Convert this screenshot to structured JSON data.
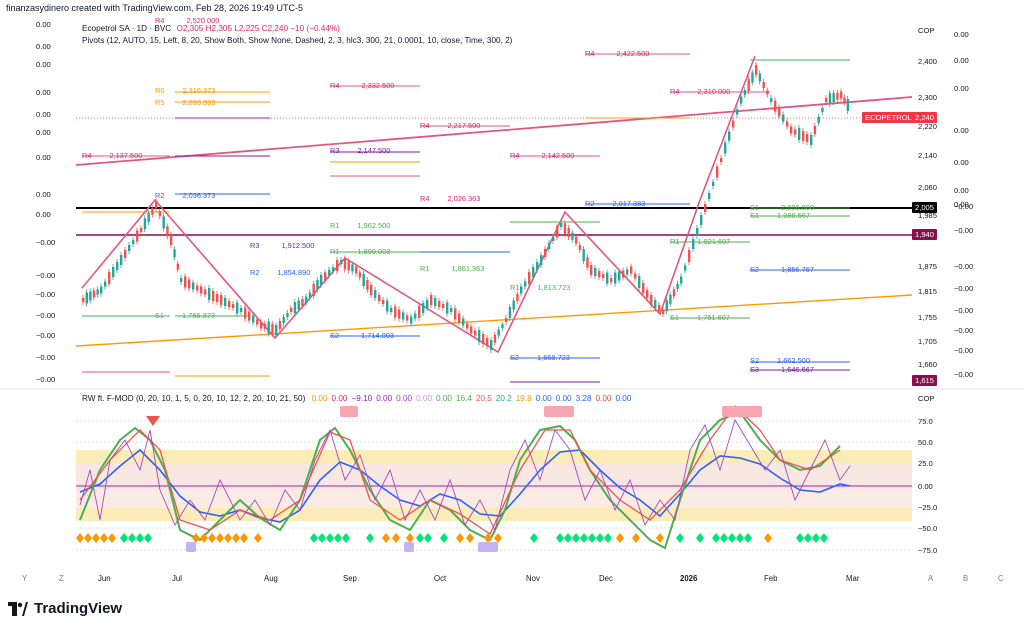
{
  "header": {
    "credit": "finanzasydinero created with TradingView.com, Feb 28, 2026 19:49 UTC-5"
  },
  "main_legend": {
    "symbol": "Ecopetrol SA · 1D · BVC",
    "ohlc": "O2,305 H2,305 L2,225 C2,240 −10 (−0.44%)",
    "pivots": "Pivots (12, AUTO, 15, Left, 8, 20, Show Both, Show None, Dashed, 2, 3, hlc3, 300, 21, 0.0001, 10, close, Time, 300, 2)"
  },
  "indicator_legend": {
    "name": "RW ft. F-MOD (0, 20, 10, 1, 5, 0, 20, 10, 12, 2, 20, 10, 21, 50)",
    "values": [
      {
        "v": "0.00",
        "c": "#ff9800"
      },
      {
        "v": "0.00",
        "c": "#e91e63"
      },
      {
        "v": "−9.10",
        "c": "#9c27b0"
      },
      {
        "v": "0.00",
        "c": "#9c27b0"
      },
      {
        "v": "0.00",
        "c": "#ab47bc"
      },
      {
        "v": "0.00",
        "c": "#ce93d8"
      },
      {
        "v": "0.00",
        "c": "#4caf50"
      },
      {
        "v": "16.4",
        "c": "#4caf50"
      },
      {
        "v": "20.5",
        "c": "#ef5350"
      },
      {
        "v": "20.2",
        "c": "#26a69a"
      },
      {
        "v": "19.8",
        "c": "#ff9800"
      },
      {
        "v": "0.00",
        "c": "#2962ff"
      },
      {
        "v": "0.00",
        "c": "#2962ff"
      },
      {
        "v": "3.28",
        "c": "#2962ff"
      },
      {
        "v": "0.00",
        "c": "#f44336"
      },
      {
        "v": "0.00",
        "c": "#2962ff"
      }
    ]
  },
  "price_axis": {
    "currency": "COP",
    "labels": [
      "2,400",
      "2,300",
      "2,220",
      "2,140",
      "2,060",
      "1,985",
      "1,875",
      "1,815",
      "1,755",
      "1,705",
      "1,660"
    ],
    "last_price_tag": {
      "label": "ECOPETROL",
      "value": "2,240",
      "color": "#f23645"
    },
    "level_tags": [
      {
        "value": "2,005",
        "color": "#000000"
      },
      {
        "value": "1,940",
        "color": "#880e4f"
      },
      {
        "value": "1,615",
        "color": "#880e4f"
      }
    ]
  },
  "indicator_axis": {
    "currency": "COP",
    "labels": [
      "75.0",
      "50.0",
      "25.0",
      "0.00",
      "−25.0",
      "−50.0",
      "−75.0"
    ]
  },
  "left_column": [
    "0.00",
    "0.00",
    "0.00",
    "0.00",
    "0.00",
    "0.00",
    "0.00",
    "0.00",
    "0.00",
    "−0.00",
    "−0.00",
    "−0.00",
    "−0.00",
    "−0.00",
    "−0.00",
    "−0.00",
    "−0.00",
    "−0.00",
    "−0.00"
  ],
  "right_column": [
    "0.00",
    "0.00",
    "0.00",
    "0.00",
    "0.00",
    "0.00",
    "0.00",
    "−0.00",
    "−0.00",
    "−0.00",
    "−0.00",
    "−0.00",
    "−0.00",
    "−0.00",
    "−0.00",
    "−0.00",
    "−0.00"
  ],
  "pivot_labels": [
    {
      "t": "R4",
      "v": "2,520.000",
      "c": "#e91e63"
    },
    {
      "t": "R6",
      "v": "2,316.373",
      "c": "#ff9800"
    },
    {
      "t": "R5",
      "v": "2,283.333",
      "c": "#ff9800"
    },
    {
      "t": "R4",
      "v": "2,332.500",
      "c": "#e91e63"
    },
    {
      "t": "R4",
      "v": "2,137.500",
      "c": "#e91e63"
    },
    {
      "t": "R3",
      "v": "2,147.500",
      "c": "#7b1fa2"
    },
    {
      "t": "R4",
      "v": "2,422.500",
      "c": "#e91e63"
    },
    {
      "t": "R4",
      "v": "2,310.000",
      "c": "#e91e63"
    },
    {
      "t": "R4",
      "v": "2,217.500",
      "c": "#e91e63"
    },
    {
      "t": "R4",
      "v": "2,142.500",
      "c": "#e91e63"
    },
    {
      "t": "R2",
      "v": "2,036.373",
      "c": "#2962ff"
    },
    {
      "t": "R2",
      "v": "2,017.383",
      "c": "#2962ff"
    },
    {
      "t": "S1",
      "v": "2,006.000",
      "c": "#4caf50"
    },
    {
      "t": "S1",
      "v": "1,986.567",
      "c": "#4caf50"
    },
    {
      "t": "R1",
      "v": "1,921.607",
      "c": "#4caf50"
    },
    {
      "t": "S2",
      "v": "1,856.767",
      "c": "#2962ff"
    },
    {
      "t": "S1",
      "v": "1,756.373",
      "c": "#4caf50"
    },
    {
      "t": "S1",
      "v": "1,751.607",
      "c": "#4caf50"
    },
    {
      "t": "S2",
      "v": "1,714.003",
      "c": "#2962ff"
    },
    {
      "t": "S2",
      "v": "1,668.723",
      "c": "#2962ff"
    },
    {
      "t": "S2",
      "v": "1,662.500",
      "c": "#2962ff"
    },
    {
      "t": "S3",
      "v": "1,646.667",
      "c": "#7b1fa2"
    },
    {
      "t": "R1",
      "v": "1,899.003",
      "c": "#4caf50"
    },
    {
      "t": "R2",
      "v": "1,854.890",
      "c": "#2962ff"
    },
    {
      "t": "R3",
      "v": "1,912.500",
      "c": "#7b1fa2"
    },
    {
      "t": "R1",
      "v": "1,962.500",
      "c": "#4caf50"
    },
    {
      "t": "R4",
      "v": "2,026.363",
      "c": "#e91e63"
    },
    {
      "t": "R1",
      "v": "1,861.363",
      "c": "#4caf50"
    },
    {
      "t": "R1",
      "v": "1,813.723",
      "c": "#4caf50"
    }
  ],
  "x_axis": {
    "labels": [
      "Jun",
      "Jul",
      "Aug",
      "Sep",
      "Oct",
      "Nov",
      "Dec",
      "2026",
      "Feb",
      "Mar"
    ]
  },
  "nav_letters": [
    "Y",
    "Z",
    "A",
    "B",
    "C"
  ],
  "footer": {
    "brand": "TradingView"
  },
  "colors": {
    "up": "#26a69a",
    "down": "#ef5350",
    "trendline_pink": "#e0577f",
    "trendline_orange": "#ff9800",
    "zigzag": "#e0577f"
  }
}
